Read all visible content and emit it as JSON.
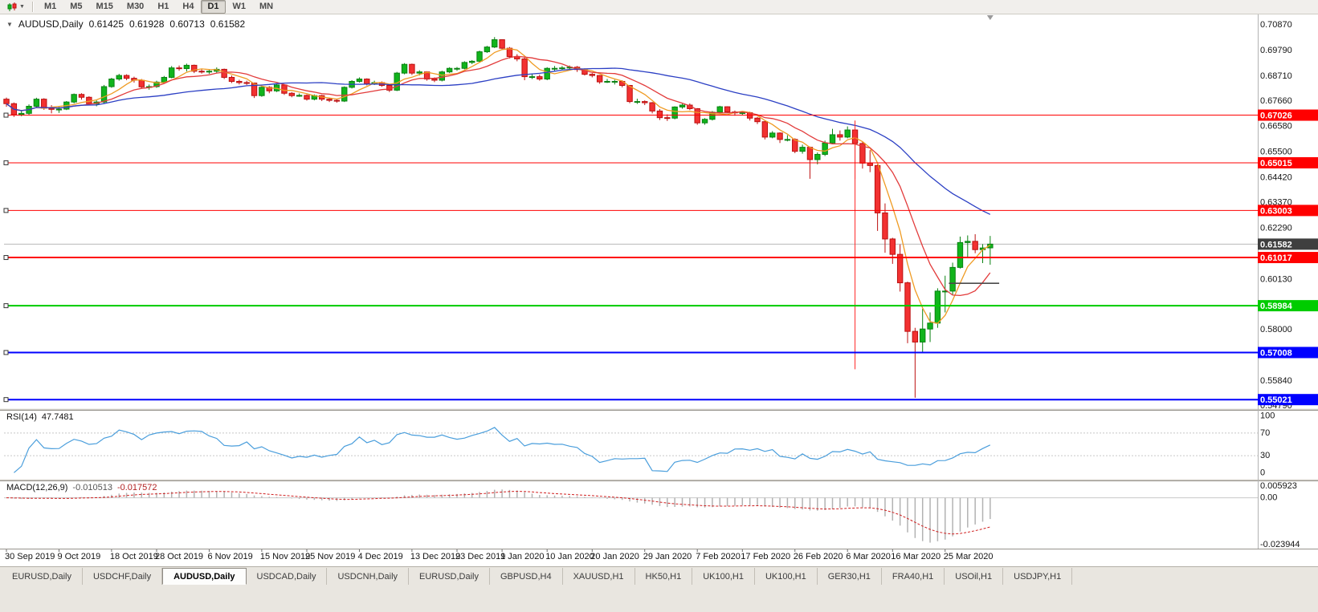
{
  "toolbar": {
    "timeframes": [
      "M1",
      "M5",
      "M15",
      "M30",
      "H1",
      "H4",
      "D1",
      "W1",
      "MN"
    ],
    "active": "D1"
  },
  "chart": {
    "title": {
      "symbol": "AUDUSD,Daily",
      "open": "0.61425",
      "high": "0.61928",
      "low": "0.60713",
      "close": "0.61582"
    },
    "bid": {
      "price": 0.61582,
      "label": "0.61582"
    },
    "hlines": [
      {
        "price": 0.67026,
        "label": "0.67026",
        "color": "#ff0000",
        "width": 1
      },
      {
        "price": 0.65015,
        "label": "0.65015",
        "color": "#ff0000",
        "width": 1
      },
      {
        "price": 0.63003,
        "label": "0.63003",
        "color": "#ff0000",
        "width": 1
      },
      {
        "price": 0.61017,
        "label": "0.61017",
        "color": "#ff0000",
        "width": 2
      },
      {
        "price": 0.58984,
        "label": "0.58984",
        "color": "#00cc00",
        "width": 2
      },
      {
        "price": 0.57008,
        "label": "0.57008",
        "color": "#0000ff",
        "width": 2
      },
      {
        "price": 0.55021,
        "label": "0.55021",
        "color": "#0000ff",
        "width": 2
      }
    ],
    "vline": {
      "index": 113,
      "from": 0.668,
      "to": 0.563,
      "color": "#ff2a2a"
    },
    "trend_segment": {
      "i1": 125.5,
      "i2": 132.2,
      "price": 0.5993,
      "color": "#4a4a4a"
    }
  },
  "chart_data": {
    "type": "candlestick",
    "symbol": "AUDUSD",
    "timeframe": "Daily",
    "price_axis": {
      "max": 0.71276,
      "min": 0.54655,
      "ticks": [
        "0.70870",
        "0.69790",
        "0.68710",
        "0.67660",
        "0.66580",
        "0.65500",
        "0.64420",
        "0.63370",
        "0.62290",
        "0.60130",
        "0.58000",
        "0.55840",
        "0.54790"
      ]
    },
    "candles": [
      [
        0.677,
        0.6777,
        0.6738,
        0.6751
      ],
      [
        0.6751,
        0.6756,
        0.6695,
        0.6704
      ],
      [
        0.6704,
        0.6722,
        0.6698,
        0.671
      ],
      [
        0.671,
        0.6748,
        0.6704,
        0.674
      ],
      [
        0.674,
        0.6776,
        0.6735,
        0.677
      ],
      [
        0.677,
        0.6774,
        0.6725,
        0.6732
      ],
      [
        0.6732,
        0.6745,
        0.671,
        0.6727
      ],
      [
        0.6727,
        0.6738,
        0.6712,
        0.6728
      ],
      [
        0.6728,
        0.6762,
        0.6724,
        0.6758
      ],
      [
        0.6758,
        0.6794,
        0.6752,
        0.679
      ],
      [
        0.679,
        0.6795,
        0.6768,
        0.6778
      ],
      [
        0.6778,
        0.6782,
        0.6745,
        0.6751
      ],
      [
        0.6751,
        0.6765,
        0.674,
        0.6758
      ],
      [
        0.6758,
        0.683,
        0.6752,
        0.6823
      ],
      [
        0.6823,
        0.686,
        0.6818,
        0.6855
      ],
      [
        0.6855,
        0.6877,
        0.6848,
        0.687
      ],
      [
        0.687,
        0.6875,
        0.685,
        0.6858
      ],
      [
        0.6858,
        0.6865,
        0.684,
        0.685
      ],
      [
        0.685,
        0.6855,
        0.6815,
        0.6822
      ],
      [
        0.6822,
        0.6832,
        0.681,
        0.6823
      ],
      [
        0.6823,
        0.6848,
        0.6818,
        0.6842
      ],
      [
        0.6842,
        0.6868,
        0.6836,
        0.6862
      ],
      [
        0.6862,
        0.691,
        0.6858,
        0.6902
      ],
      [
        0.6902,
        0.6912,
        0.689,
        0.6899
      ],
      [
        0.6899,
        0.692,
        0.6887,
        0.6913
      ],
      [
        0.6913,
        0.6916,
        0.688,
        0.6888
      ],
      [
        0.6888,
        0.6898,
        0.6878,
        0.6887
      ],
      [
        0.6887,
        0.6895,
        0.6877,
        0.6888
      ],
      [
        0.6888,
        0.6904,
        0.688,
        0.6896
      ],
      [
        0.6896,
        0.6899,
        0.6855,
        0.6862
      ],
      [
        0.6862,
        0.687,
        0.6838,
        0.6845
      ],
      [
        0.6845,
        0.6852,
        0.6832,
        0.684
      ],
      [
        0.684,
        0.6848,
        0.683,
        0.6838
      ],
      [
        0.6838,
        0.684,
        0.6775,
        0.6785
      ],
      [
        0.6785,
        0.6825,
        0.678,
        0.682
      ],
      [
        0.682,
        0.6825,
        0.6795,
        0.6805
      ],
      [
        0.6805,
        0.6835,
        0.68,
        0.683
      ],
      [
        0.683,
        0.6832,
        0.6788,
        0.6795
      ],
      [
        0.6795,
        0.68,
        0.6778,
        0.6785
      ],
      [
        0.6785,
        0.6794,
        0.678,
        0.6786
      ],
      [
        0.6786,
        0.679,
        0.6764,
        0.677
      ],
      [
        0.677,
        0.679,
        0.6765,
        0.6785
      ],
      [
        0.6785,
        0.6788,
        0.6762,
        0.677
      ],
      [
        0.677,
        0.6776,
        0.6758,
        0.6765
      ],
      [
        0.6765,
        0.677,
        0.6755,
        0.6762
      ],
      [
        0.6762,
        0.6824,
        0.6758,
        0.682
      ],
      [
        0.682,
        0.685,
        0.6815,
        0.6845
      ],
      [
        0.6845,
        0.6862,
        0.684,
        0.6855
      ],
      [
        0.6855,
        0.6858,
        0.6828,
        0.6835
      ],
      [
        0.6835,
        0.6848,
        0.683,
        0.684
      ],
      [
        0.684,
        0.6845,
        0.6822,
        0.6828
      ],
      [
        0.6828,
        0.6832,
        0.68,
        0.6808
      ],
      [
        0.6808,
        0.6885,
        0.6804,
        0.688
      ],
      [
        0.688,
        0.6922,
        0.6875,
        0.6917
      ],
      [
        0.6917,
        0.692,
        0.6872,
        0.688
      ],
      [
        0.688,
        0.6892,
        0.687,
        0.6885
      ],
      [
        0.6885,
        0.6888,
        0.6848,
        0.6855
      ],
      [
        0.6855,
        0.6862,
        0.6842,
        0.685
      ],
      [
        0.685,
        0.689,
        0.6845,
        0.6885
      ],
      [
        0.6885,
        0.6905,
        0.688,
        0.69
      ],
      [
        0.69,
        0.6906,
        0.689,
        0.69
      ],
      [
        0.69,
        0.693,
        0.6896,
        0.6925
      ],
      [
        0.6925,
        0.6935,
        0.6918,
        0.693
      ],
      [
        0.693,
        0.6975,
        0.6926,
        0.697
      ],
      [
        0.697,
        0.6995,
        0.6965,
        0.699
      ],
      [
        0.699,
        0.7032,
        0.6986,
        0.7021
      ],
      [
        0.7021,
        0.7023,
        0.6978,
        0.6985
      ],
      [
        0.6985,
        0.699,
        0.6942,
        0.695
      ],
      [
        0.695,
        0.696,
        0.693,
        0.694
      ],
      [
        0.694,
        0.6945,
        0.685,
        0.6865
      ],
      [
        0.6865,
        0.6878,
        0.6855,
        0.6865
      ],
      [
        0.6865,
        0.6874,
        0.6848,
        0.6855
      ],
      [
        0.6855,
        0.6905,
        0.685,
        0.69
      ],
      [
        0.69,
        0.691,
        0.689,
        0.69
      ],
      [
        0.69,
        0.691,
        0.6892,
        0.6902
      ],
      [
        0.6902,
        0.6912,
        0.6895,
        0.6905
      ],
      [
        0.6905,
        0.691,
        0.6885,
        0.6895
      ],
      [
        0.6895,
        0.69,
        0.687,
        0.6875
      ],
      [
        0.6875,
        0.688,
        0.6862,
        0.687
      ],
      [
        0.687,
        0.6872,
        0.6835,
        0.6843
      ],
      [
        0.6843,
        0.6855,
        0.6838,
        0.6845
      ],
      [
        0.6845,
        0.6852,
        0.6832,
        0.6845
      ],
      [
        0.6845,
        0.685,
        0.682,
        0.6828
      ],
      [
        0.6828,
        0.683,
        0.6753,
        0.676
      ],
      [
        0.676,
        0.6772,
        0.675,
        0.676
      ],
      [
        0.676,
        0.6765,
        0.6745,
        0.6755
      ],
      [
        0.6755,
        0.6758,
        0.671,
        0.672
      ],
      [
        0.672,
        0.6728,
        0.6682,
        0.6692
      ],
      [
        0.6692,
        0.6706,
        0.6678,
        0.669
      ],
      [
        0.669,
        0.674,
        0.6685,
        0.6737
      ],
      [
        0.6737,
        0.675,
        0.673,
        0.6745
      ],
      [
        0.6745,
        0.6752,
        0.6724,
        0.673
      ],
      [
        0.673,
        0.6732,
        0.6662,
        0.667
      ],
      [
        0.667,
        0.669,
        0.6662,
        0.6685
      ],
      [
        0.6685,
        0.672,
        0.668,
        0.6715
      ],
      [
        0.6715,
        0.6742,
        0.671,
        0.6738
      ],
      [
        0.6738,
        0.674,
        0.671,
        0.6716
      ],
      [
        0.6716,
        0.6722,
        0.67,
        0.6712
      ],
      [
        0.6712,
        0.6718,
        0.6702,
        0.6713
      ],
      [
        0.6713,
        0.6717,
        0.668,
        0.669
      ],
      [
        0.669,
        0.6695,
        0.6665,
        0.6675
      ],
      [
        0.6675,
        0.6678,
        0.66,
        0.661
      ],
      [
        0.661,
        0.6635,
        0.6605,
        0.6627
      ],
      [
        0.6627,
        0.663,
        0.6585,
        0.66
      ],
      [
        0.66,
        0.6618,
        0.6592,
        0.66
      ],
      [
        0.66,
        0.6605,
        0.6542,
        0.655
      ],
      [
        0.655,
        0.6578,
        0.654,
        0.6567
      ],
      [
        0.6567,
        0.657,
        0.6434,
        0.6515
      ],
      [
        0.6515,
        0.6545,
        0.6495,
        0.6537
      ],
      [
        0.6537,
        0.6595,
        0.653,
        0.6585
      ],
      [
        0.6585,
        0.6645,
        0.658,
        0.662
      ],
      [
        0.662,
        0.6638,
        0.6595,
        0.661
      ],
      [
        0.661,
        0.6655,
        0.6605,
        0.664
      ],
      [
        0.664,
        0.6647,
        0.6433,
        0.6583
      ],
      [
        0.6583,
        0.659,
        0.6477,
        0.65
      ],
      [
        0.65,
        0.6555,
        0.6462,
        0.649
      ],
      [
        0.649,
        0.6495,
        0.6214,
        0.629
      ],
      [
        0.629,
        0.633,
        0.6122,
        0.618
      ],
      [
        0.618,
        0.6185,
        0.6075,
        0.6115
      ],
      [
        0.6115,
        0.6157,
        0.5958,
        0.5995
      ],
      [
        0.5995,
        0.6,
        0.574,
        0.579
      ],
      [
        0.579,
        0.5805,
        0.551,
        0.5745
      ],
      [
        0.5745,
        0.5885,
        0.57,
        0.58
      ],
      [
        0.58,
        0.587,
        0.5745,
        0.5825
      ],
      [
        0.5825,
        0.5972,
        0.5805,
        0.596
      ],
      [
        0.596,
        0.6025,
        0.587,
        0.596
      ],
      [
        0.596,
        0.608,
        0.5945,
        0.606
      ],
      [
        0.606,
        0.619,
        0.6055,
        0.6165
      ],
      [
        0.6165,
        0.6195,
        0.61,
        0.617
      ],
      [
        0.617,
        0.62,
        0.612,
        0.6135
      ],
      [
        0.6135,
        0.6158,
        0.6078,
        0.6142
      ],
      [
        0.61425,
        0.61928,
        0.60713,
        0.61582
      ]
    ],
    "date_ticks": [
      {
        "i": 0,
        "t": "30 Sep 2019"
      },
      {
        "i": 7,
        "t": "9 Oct 2019"
      },
      {
        "i": 14,
        "t": "18 Oct 2019"
      },
      {
        "i": 20,
        "t": "28 Oct 2019"
      },
      {
        "i": 27,
        "t": "6 Nov 2019"
      },
      {
        "i": 34,
        "t": "15 Nov 2019"
      },
      {
        "i": 40,
        "t": "25 Nov 2019"
      },
      {
        "i": 47,
        "t": "4 Dec 2019"
      },
      {
        "i": 54,
        "t": "13 Dec 2019"
      },
      {
        "i": 60,
        "t": "23 Dec 2019"
      },
      {
        "i": 66,
        "t": "1 Jan 2020"
      },
      {
        "i": 72,
        "t": "10 Jan 2020"
      },
      {
        "i": 78,
        "t": "20 Jan 2020"
      },
      {
        "i": 85,
        "t": "29 Jan 2020"
      },
      {
        "i": 92,
        "t": "7 Feb 2020"
      },
      {
        "i": 98,
        "t": "17 Feb 2020"
      },
      {
        "i": 105,
        "t": "26 Feb 2020"
      },
      {
        "i": 112,
        "t": "6 Mar 2020"
      },
      {
        "i": 118,
        "t": "16 Mar 2020"
      },
      {
        "i": 125,
        "t": "25 Mar 2020"
      }
    ],
    "moving_averages": [
      {
        "period": 5,
        "color": "#ef9b23"
      },
      {
        "period": 10,
        "color": "#e23b3b"
      },
      {
        "period": 30,
        "color": "#2b3fc4"
      }
    ]
  },
  "rsi": {
    "label": "RSI(14)",
    "value": "47.7481",
    "period": 14,
    "levels": [
      70,
      30
    ],
    "axis": {
      "max": 108,
      "min": -8
    },
    "axis_ticks": [
      {
        "v": 100,
        "t": "100"
      },
      {
        "v": 70,
        "t": "70"
      },
      {
        "v": 30,
        "t": "30"
      },
      {
        "v": 0,
        "t": "0"
      }
    ]
  },
  "macd": {
    "label": "MACD(12,26,9)",
    "main_value": "-0.010513",
    "signal_value": "-0.017572",
    "fast": 12,
    "slow": 26,
    "signal_period": 9,
    "axis": {
      "max": 0.008,
      "min": -0.0255
    },
    "axis_labels": [
      {
        "v": 0.005923,
        "t": "0.005923"
      },
      {
        "v": 0,
        "t": "0.00"
      },
      {
        "v": -0.023944,
        "t": "-0.023944"
      }
    ]
  },
  "tabs": {
    "items": [
      "EURUSD,Daily",
      "USDCHF,Daily",
      "AUDUSD,Daily",
      "USDCAD,Daily",
      "USDCNH,Daily",
      "EURUSD,Daily",
      "GBPUSD,H4",
      "XAUUSD,H1",
      "HK50,H1",
      "UK100,H1",
      "UK100,H1",
      "GER30,H1",
      "FRA40,H1",
      "USOil,H1",
      "USDJPY,H1"
    ],
    "active_index": 2
  },
  "colors": {
    "candle_up": "#0a8212",
    "candle_up_fill": "#11b41c",
    "candle_down": "#bc1010",
    "candle_down_fill": "#f23131",
    "rsi_line": "#4a9edc",
    "macd_bars": "#b2b2b2",
    "macd_signal": "#d02020",
    "bid_line": "#b8b8b8",
    "bid_label_bg": "#3f3f3f"
  }
}
